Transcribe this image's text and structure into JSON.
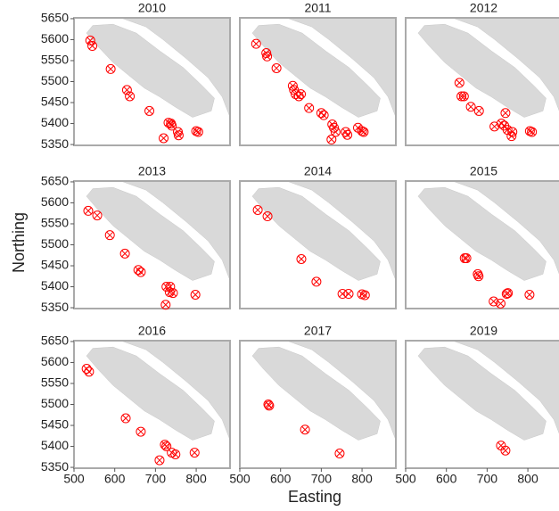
{
  "chart_data": {
    "type": "scatter",
    "x_label": "Easting",
    "y_label": "Northing",
    "color": "#ff0000",
    "xlim": [
      500,
      883
    ],
    "ylim": [
      5348,
      5652
    ],
    "xticks": [
      500,
      600,
      700,
      800
    ],
    "yticks": [
      5350,
      5400,
      5450,
      5500,
      5550,
      5600,
      5650
    ],
    "facets": [
      {
        "title": "2010",
        "x": [
          540,
          545,
          590,
          630,
          637,
          685,
          720,
          732,
          738,
          740,
          755,
          757,
          800,
          805
        ],
        "y": [
          5598,
          5585,
          5530,
          5480,
          5465,
          5430,
          5365,
          5402,
          5400,
          5395,
          5380,
          5372,
          5382,
          5380
        ]
      },
      {
        "title": "2011",
        "x": [
          540,
          565,
          567,
          590,
          630,
          633,
          637,
          645,
          650,
          670,
          700,
          706,
          727,
          731,
          735,
          725,
          760,
          764,
          790,
          800,
          804
        ],
        "y": [
          5590,
          5568,
          5560,
          5532,
          5490,
          5480,
          5470,
          5465,
          5470,
          5437,
          5425,
          5420,
          5398,
          5390,
          5380,
          5362,
          5380,
          5373,
          5390,
          5382,
          5380
        ]
      },
      {
        "title": "2012",
        "x": [
          632,
          637,
          643,
          660,
          680,
          718,
          735,
          742,
          750,
          745,
          762,
          760,
          805,
          810
        ],
        "y": [
          5497,
          5465,
          5465,
          5440,
          5430,
          5393,
          5400,
          5395,
          5385,
          5425,
          5380,
          5370,
          5382,
          5380
        ]
      },
      {
        "title": "2013",
        "x": [
          535,
          557,
          588,
          625,
          658,
          664,
          727,
          736,
          743,
          735,
          725,
          798
        ],
        "y": [
          5581,
          5570,
          5523,
          5479,
          5440,
          5435,
          5400,
          5400,
          5385,
          5387,
          5357,
          5381
        ]
      },
      {
        "title": "2014",
        "x": [
          544,
          568,
          651,
          688,
          752,
          767,
          800,
          807
        ],
        "y": [
          5583,
          5568,
          5466,
          5412,
          5383,
          5383,
          5382,
          5380
        ]
      },
      {
        "title": "2015",
        "x": [
          645,
          649,
          677,
          679,
          716,
          733,
          748,
          751,
          804
        ],
        "y": [
          5468,
          5468,
          5430,
          5425,
          5365,
          5360,
          5383,
          5385,
          5381
        ]
      },
      {
        "title": "2016",
        "x": [
          531,
          537,
          627,
          664,
          723,
          727,
          740,
          749,
          710,
          796
        ],
        "y": [
          5585,
          5578,
          5467,
          5435,
          5404,
          5400,
          5385,
          5381,
          5367,
          5385
        ]
      },
      {
        "title": "2017",
        "x": [
          570,
          572,
          660,
          745
        ],
        "y": [
          5500,
          5497,
          5440,
          5383
        ]
      },
      {
        "title": "2019",
        "x": [
          734,
          745
        ],
        "y": [
          5402,
          5390
        ]
      }
    ]
  }
}
